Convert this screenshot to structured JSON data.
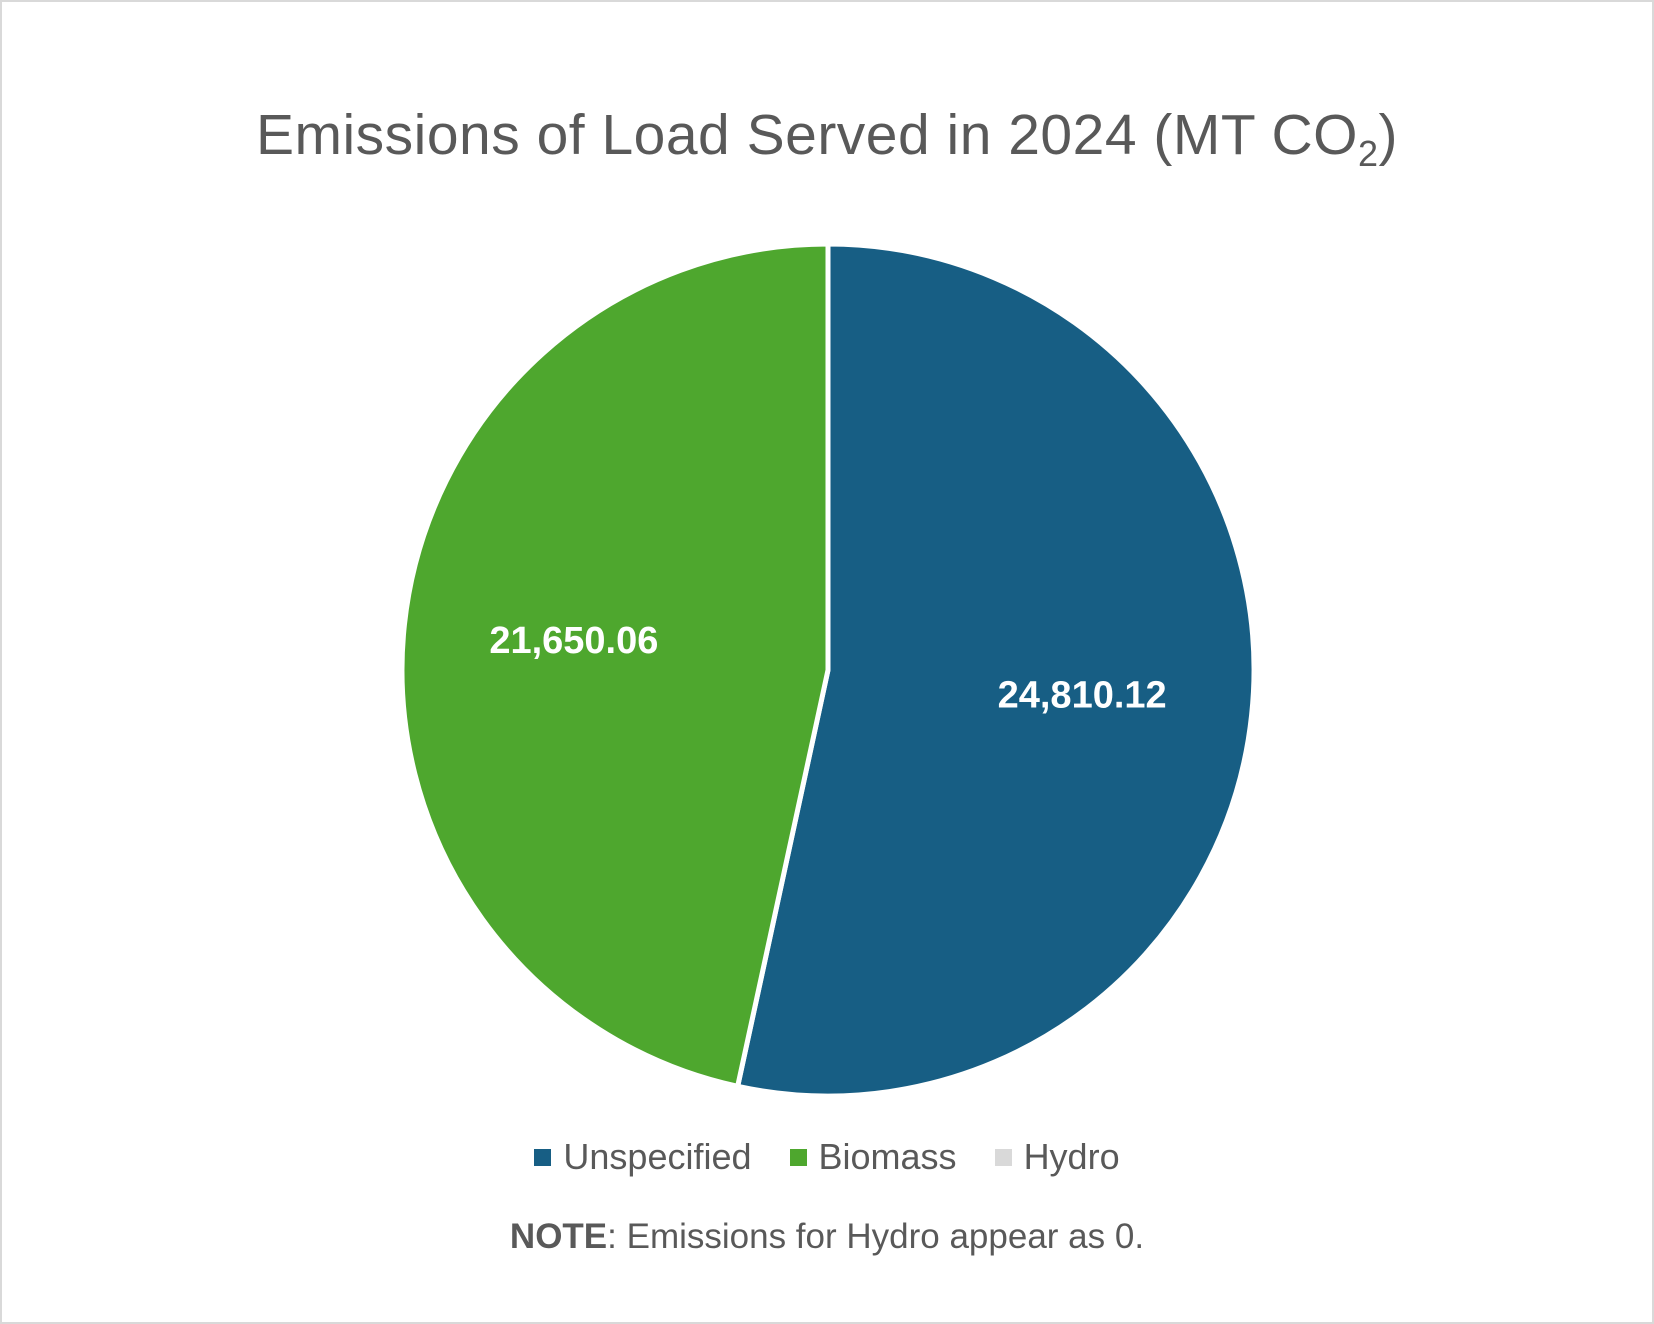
{
  "chart_data": {
    "type": "pie",
    "title_main": "Emissions of Load Served in 2024 (MT CO",
    "title_sub": "2",
    "title_end": ")",
    "slices": [
      {
        "name": "Unspecified",
        "value": 24810.12,
        "label": "24,810.12",
        "color": "#175e84"
      },
      {
        "name": "Biomass",
        "value": 21650.06,
        "label": "21,650.06",
        "color": "#4ea72e"
      },
      {
        "name": "Hydro",
        "value": 0,
        "label": "",
        "color": "#d9d9d9"
      }
    ],
    "legend_position": "bottom"
  },
  "note": {
    "bold": "NOTE",
    "text": ": Emissions for Hydro appear as 0."
  }
}
